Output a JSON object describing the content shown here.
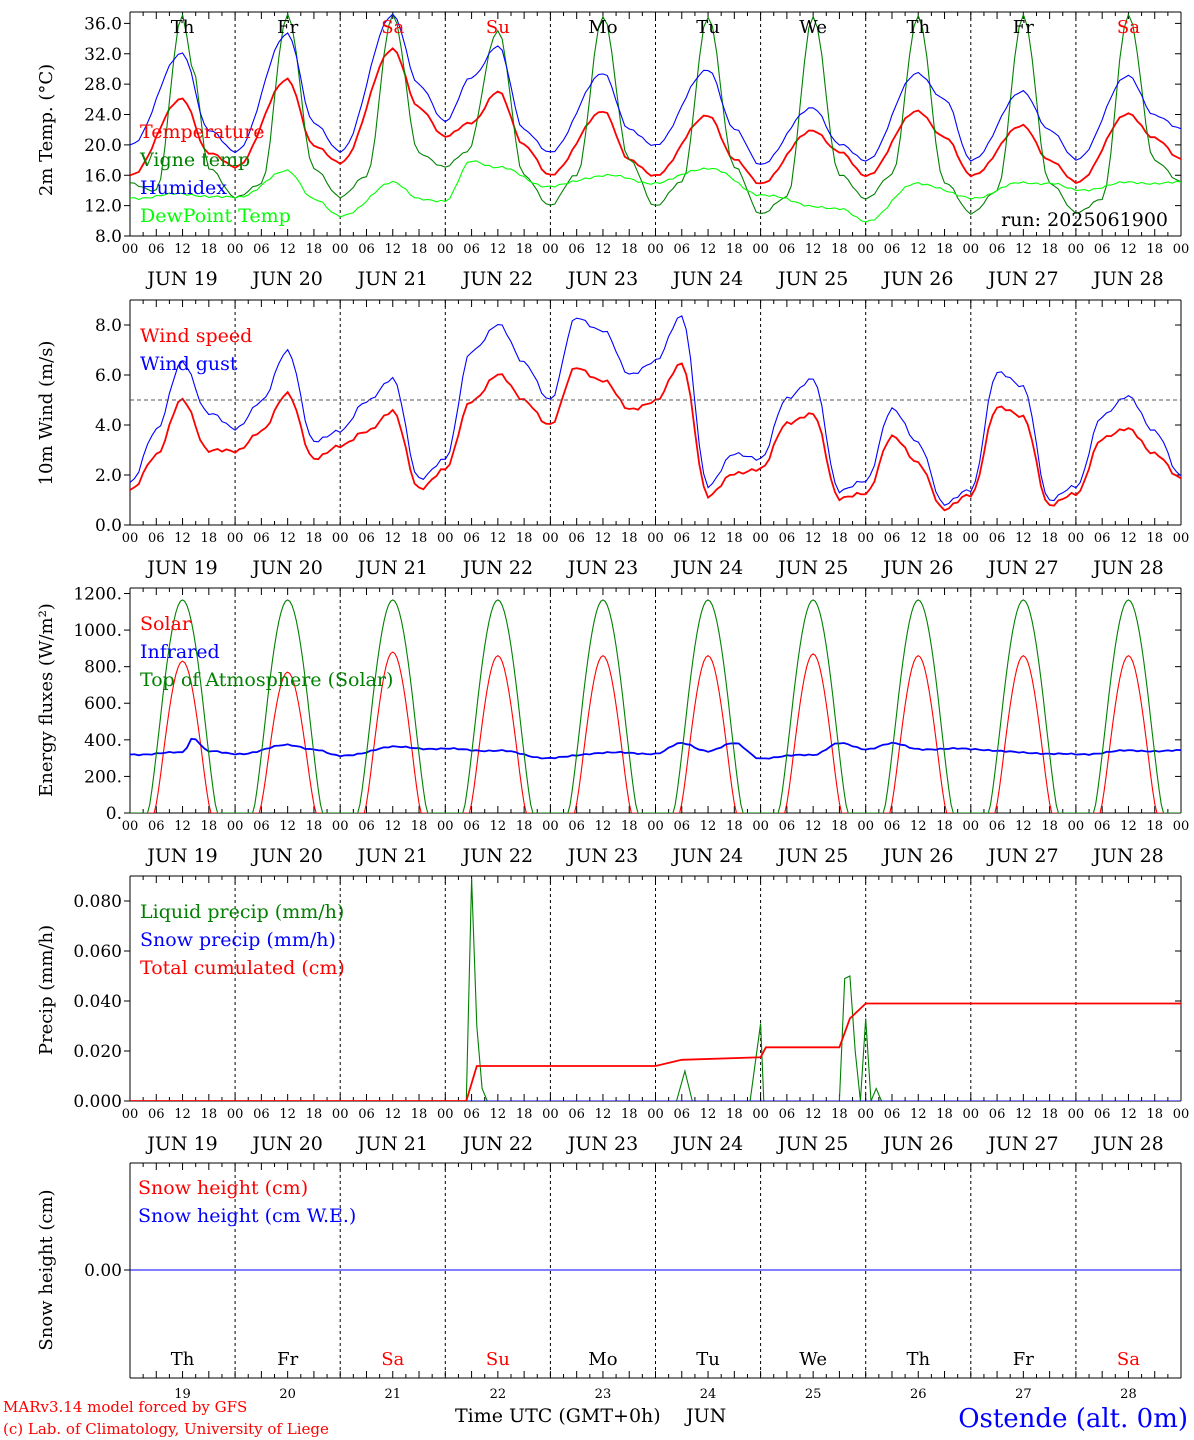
{
  "colors": {
    "red": "#ff0000",
    "blue": "#0000ff",
    "green": "#008000",
    "lightgreen": "#00ff00",
    "black": "#000000"
  },
  "x_axis": {
    "hour_ticks": [
      "00",
      "06",
      "12",
      "18"
    ],
    "end_tick": "00",
    "dates": [
      "JUN 19",
      "JUN 20",
      "JUN 21",
      "JUN 22",
      "JUN 23",
      "JUN 24",
      "JUN 25",
      "JUN 26",
      "JUN 27",
      "JUN 28"
    ],
    "day_names": [
      "Th",
      "Fr",
      "Sa",
      "Su",
      "Mo",
      "Tu",
      "We",
      "Th",
      "Fr",
      "Sa"
    ],
    "weekend_flags": [
      false,
      false,
      true,
      true,
      false,
      false,
      false,
      false,
      false,
      true
    ],
    "day_numbers": [
      "19",
      "20",
      "21",
      "22",
      "23",
      "24",
      "25",
      "26",
      "27",
      "28"
    ],
    "month": "JUN",
    "title": "Time UTC (GMT+0h)"
  },
  "footer": {
    "line1": "MARv3.14 model forced by GFS",
    "line2": "(c) Lab. of Climatology, University of Liege",
    "station": "Ostende (alt. 0m)"
  },
  "chart_data": [
    {
      "type": "line",
      "ylabel": "2m Temp. (°C)",
      "ylim": [
        8,
        37.5
      ],
      "yticks": [
        "8.0",
        "12.0",
        "16.0",
        "20.0",
        "24.0",
        "28.0",
        "32.0",
        "36.0"
      ],
      "run_label": "run: 2025061900",
      "grid": "dashed vertical lines at 00 UTC",
      "series": [
        {
          "name": "Temperature",
          "color": "#ff0000",
          "x_days": [
            0,
            0.5,
            0.75,
            1,
            1.5,
            1.75,
            2,
            2.5,
            2.75,
            3,
            3.25,
            3.5,
            3.75,
            4,
            4.5,
            4.75,
            5,
            5.5,
            5.75,
            6,
            6.5,
            6.75,
            7,
            7.5,
            7.75,
            8,
            8.5,
            8.75,
            9,
            9.5,
            9.75,
            10
          ],
          "values": [
            16,
            26,
            19,
            17,
            28.5,
            20,
            17.5,
            32.5,
            25,
            21,
            23,
            27,
            20,
            16,
            24.5,
            18,
            16,
            24,
            18,
            15,
            22,
            19,
            16,
            24.5,
            21,
            16,
            22.5,
            18,
            15,
            24,
            21,
            18
          ]
        },
        {
          "name": "Vigne temp",
          "color": "#008000",
          "x_days": [
            0,
            0.25,
            0.5,
            0.6,
            0.75,
            1,
            1.25,
            1.5,
            1.75,
            2,
            2.25,
            2.5,
            2.75,
            3,
            3.2,
            3.5,
            3.75,
            4,
            4.25,
            4.5,
            4.75,
            5,
            5.25,
            5.5,
            5.75,
            6,
            6.25,
            6.5,
            6.75,
            7,
            7.25,
            7.5,
            7.75,
            8,
            8.25,
            8.5,
            8.75,
            9,
            9.25,
            9.5,
            9.75,
            10
          ],
          "values": [
            15,
            14,
            37,
            30,
            17,
            13,
            15,
            37,
            17,
            13,
            16,
            37,
            19,
            17,
            19,
            35,
            16,
            12,
            16,
            37,
            18,
            12,
            15,
            37,
            17,
            11,
            13,
            37,
            16,
            13,
            16,
            37,
            15,
            11,
            14,
            37,
            15,
            11,
            13,
            37,
            18,
            15
          ]
        },
        {
          "name": "Humidex",
          "color": "#0000ff",
          "x_days": [
            0,
            0.5,
            0.75,
            1,
            1.5,
            1.75,
            2,
            2.5,
            2.75,
            3,
            3.25,
            3.5,
            3.75,
            4,
            4.5,
            4.75,
            5,
            5.5,
            5.75,
            6,
            6.5,
            6.75,
            7,
            7.5,
            7.75,
            8,
            8.5,
            8.75,
            9,
            9.5,
            9.75,
            10
          ],
          "values": [
            20,
            32,
            22,
            19,
            34.5,
            23,
            19,
            37,
            28,
            23,
            29,
            33,
            22,
            19,
            29.5,
            22,
            20,
            30,
            22,
            17.5,
            25,
            20,
            18,
            29.5,
            26,
            18,
            27,
            22,
            18,
            29,
            24,
            22
          ]
        },
        {
          "name": "DewPoint Temp",
          "color": "#00ff00",
          "x_days": [
            0,
            0.5,
            1,
            1.5,
            1.75,
            2,
            2.5,
            2.75,
            3,
            3.25,
            3.5,
            4,
            4.5,
            5,
            5.5,
            6,
            6.5,
            6.75,
            7,
            7.5,
            8,
            8.5,
            8.75,
            9,
            9.5,
            10
          ],
          "values": [
            13,
            13.5,
            13,
            16.5,
            13,
            10.5,
            15,
            13,
            12.5,
            18,
            17,
            14.5,
            16,
            15,
            17,
            13.5,
            12,
            11.5,
            10,
            15,
            13,
            15,
            15,
            14,
            15,
            15
          ]
        }
      ]
    },
    {
      "type": "line",
      "ylabel": "10m Wind (m/s)",
      "ylim": [
        0,
        9
      ],
      "yticks": [
        "0.0",
        "2.0",
        "4.0",
        "6.0",
        "8.0"
      ],
      "reference_line": 5.0,
      "series": [
        {
          "name": "Wind speed",
          "color": "#ff0000",
          "x_days": [
            0,
            0.25,
            0.5,
            0.75,
            1,
            1.25,
            1.5,
            1.75,
            2,
            2.25,
            2.5,
            2.75,
            3,
            3.25,
            3.5,
            3.75,
            4,
            4.25,
            4.5,
            4.75,
            5,
            5.25,
            5.5,
            5.75,
            6,
            6.25,
            6.5,
            6.75,
            7,
            7.25,
            7.5,
            7.75,
            8,
            8.25,
            8.5,
            8.75,
            9,
            9.25,
            9.5,
            9.75,
            10
          ],
          "values": [
            1.4,
            2.8,
            5,
            3,
            2.9,
            3.8,
            5.2,
            2.7,
            3.1,
            3.8,
            4.5,
            1.5,
            2.2,
            5,
            6,
            5,
            4,
            6.3,
            5.8,
            4.6,
            5,
            6.4,
            1.2,
            2,
            2.3,
            4,
            4.5,
            1,
            1.3,
            3.5,
            2.5,
            0.6,
            1.2,
            4.7,
            4.3,
            0.8,
            1.2,
            3.5,
            3.8,
            2.9,
            1.8
          ]
        },
        {
          "name": "Wind gust",
          "color": "#0000ff",
          "x_days": [
            0,
            0.25,
            0.5,
            0.75,
            1,
            1.25,
            1.5,
            1.75,
            2,
            2.25,
            2.5,
            2.75,
            3,
            3.25,
            3.5,
            3.75,
            4,
            4.25,
            4.5,
            4.75,
            5,
            5.25,
            5.5,
            5.75,
            6,
            6.25,
            6.5,
            6.75,
            7,
            7.25,
            7.5,
            7.75,
            8,
            8.25,
            8.5,
            8.75,
            9,
            9.25,
            9.5,
            9.75,
            10
          ],
          "values": [
            1.7,
            3.8,
            6.5,
            4.5,
            3.8,
            5,
            6.9,
            3.4,
            3.7,
            5,
            5.8,
            1.9,
            2.6,
            7,
            8,
            6.5,
            5,
            8.3,
            7.8,
            6,
            6.6,
            8.3,
            1.6,
            2.8,
            2.7,
            5,
            5.9,
            1.3,
            1.8,
            4.6,
            3.3,
            0.8,
            1.4,
            6.1,
            5.5,
            1,
            1.5,
            4.4,
            5.1,
            3.8,
            1.9
          ]
        }
      ]
    },
    {
      "type": "line",
      "ylabel": "Energy fluxes (W/m²)",
      "ylim": [
        0,
        1230
      ],
      "yticks": [
        "0.",
        "200.",
        "400.",
        "600.",
        "800.",
        "1000.",
        "1200."
      ],
      "series": [
        {
          "name": "Solar",
          "color": "#ff0000",
          "peaks": [
            830,
            770,
            880,
            860,
            860,
            860,
            870,
            860,
            860,
            860
          ]
        },
        {
          "name": "Infrared",
          "color": "#0000ff",
          "x_days": [
            0,
            0.5,
            0.6,
            0.75,
            1,
            1.5,
            1.75,
            2,
            2.5,
            3,
            3.5,
            4,
            4.5,
            5,
            5.25,
            5.5,
            5.75,
            6,
            6.5,
            6.75,
            7,
            7.25,
            7.5,
            8,
            8.5,
            9,
            9.5,
            10
          ],
          "values": [
            320,
            330,
            410,
            340,
            320,
            370,
            350,
            310,
            360,
            350,
            340,
            300,
            330,
            325,
            380,
            340,
            380,
            300,
            320,
            380,
            350,
            380,
            350,
            350,
            330,
            320,
            340,
            340
          ]
        },
        {
          "name": "Top of Atmosphere (Solar)",
          "color": "#008000",
          "peaks": [
            1165,
            1165,
            1165,
            1165,
            1165,
            1165,
            1165,
            1165,
            1165,
            1165
          ]
        }
      ]
    },
    {
      "type": "line",
      "ylabel": "Precip (mm/h)",
      "ylim": [
        0,
        0.09
      ],
      "yticks": [
        "0.000",
        "0.020",
        "0.040",
        "0.060",
        "0.080"
      ],
      "series": [
        {
          "name": "Liquid precip (mm/h)",
          "color": "#008000",
          "x_days": [
            0,
            3.2,
            3.25,
            3.3,
            3.35,
            3.4,
            5.2,
            5.28,
            5.35,
            5.9,
            6,
            6.03,
            6.1,
            6.75,
            6.8,
            6.85,
            6.9,
            6.95,
            7,
            7.05,
            7.1,
            7.15,
            10
          ],
          "values": [
            0,
            0,
            0.089,
            0.03,
            0.005,
            0,
            0,
            0.012,
            0,
            0,
            0.031,
            0,
            0,
            0,
            0.049,
            0.05,
            0.02,
            0,
            0.033,
            0,
            0.005,
            0,
            0
          ]
        },
        {
          "name": "Snow precip (mm/h)",
          "color": "#0000ff",
          "x_days": [
            0,
            10
          ],
          "values": [
            0,
            0
          ]
        },
        {
          "name": "Total cumulated (cm)",
          "color": "#ff0000",
          "x_days": [
            0,
            3.2,
            3.3,
            5,
            5.25,
            6,
            6.05,
            6.75,
            6.85,
            7,
            10
          ],
          "values": [
            0,
            0,
            0.014,
            0.014,
            0.0165,
            0.0175,
            0.0215,
            0.0215,
            0.033,
            0.039,
            0.039
          ]
        }
      ]
    },
    {
      "type": "line",
      "ylabel": "Snow height (cm)",
      "yticks": [
        "0.00"
      ],
      "series": [
        {
          "name": "Snow height (cm)",
          "color": "#ff0000",
          "x_days": [
            0,
            10
          ],
          "values": [
            0,
            0
          ]
        },
        {
          "name": "Snow height (cm W.E.)",
          "color": "#0000ff",
          "x_days": [
            0,
            10
          ],
          "values": [
            0,
            0
          ]
        }
      ]
    }
  ]
}
